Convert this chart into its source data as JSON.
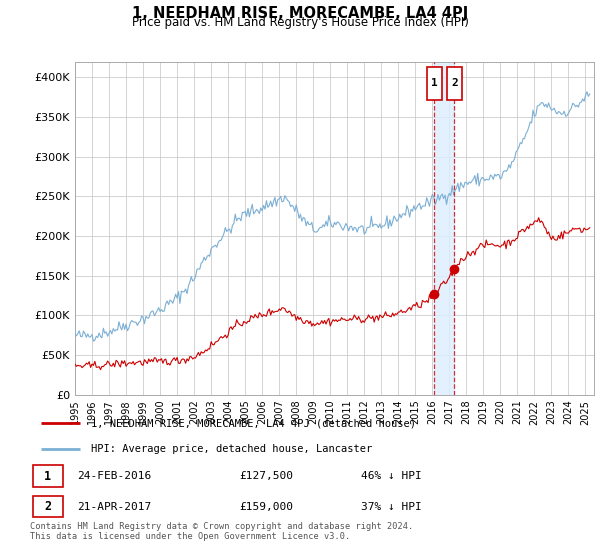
{
  "title": "1, NEEDHAM RISE, MORECAMBE, LA4 4PJ",
  "subtitle": "Price paid vs. HM Land Registry's House Price Index (HPI)",
  "ytick_labels": [
    "£0",
    "£50K",
    "£100K",
    "£150K",
    "£200K",
    "£250K",
    "£300K",
    "£350K",
    "£400K"
  ],
  "yticks": [
    0,
    50000,
    100000,
    150000,
    200000,
    250000,
    300000,
    350000,
    400000
  ],
  "ylim": [
    0,
    420000
  ],
  "xlim_start": 1995.0,
  "xlim_end": 2025.5,
  "red_line_label": "1, NEEDHAM RISE, MORECAMBE, LA4 4PJ (detached house)",
  "blue_line_label": "HPI: Average price, detached house, Lancaster",
  "transaction1": {
    "num": "1",
    "date": "24-FEB-2016",
    "price": "£127,500",
    "hpi": "46% ↓ HPI"
  },
  "transaction2": {
    "num": "2",
    "date": "21-APR-2017",
    "price": "£159,000",
    "hpi": "37% ↓ HPI"
  },
  "footer": "Contains HM Land Registry data © Crown copyright and database right 2024.\nThis data is licensed under the Open Government Licence v3.0.",
  "t1_x": 2016.12,
  "t2_x": 2017.29,
  "t1_y": 127500,
  "t2_y": 159000,
  "red_color": "#cc0000",
  "blue_color": "#7bafd4",
  "shade_color": "#ddeeff",
  "grid_color": "#cccccc"
}
